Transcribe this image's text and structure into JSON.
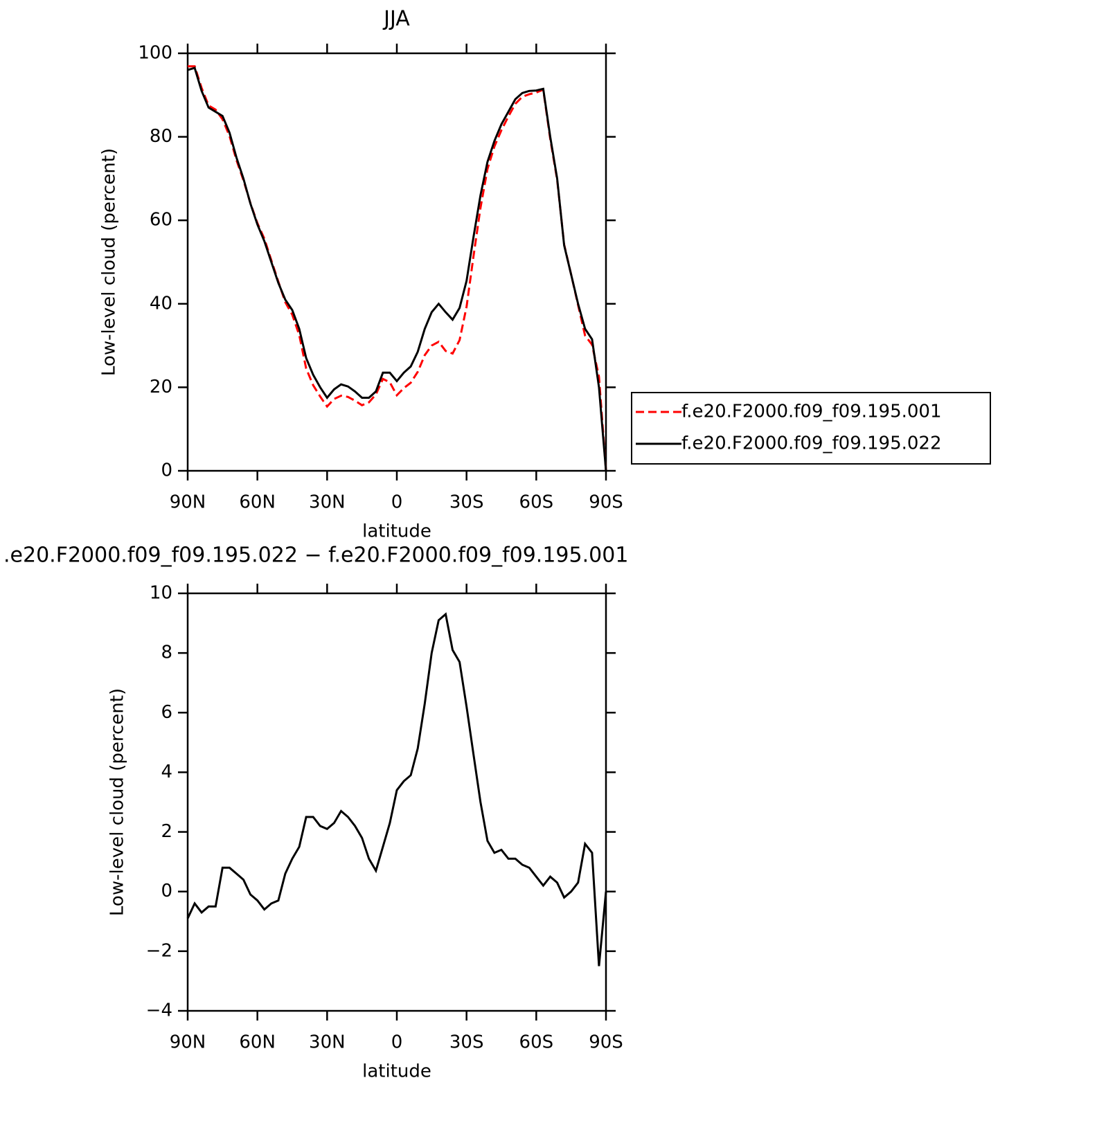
{
  "chart_data": [
    {
      "type": "line",
      "title": "JJA",
      "xlabel": "latitude",
      "ylabel": "Low-level cloud (percent)",
      "x": [
        90,
        87,
        84,
        81,
        78,
        75,
        72,
        69,
        66,
        63,
        60,
        57,
        54,
        51,
        48,
        45,
        42,
        39,
        36,
        33,
        30,
        27,
        24,
        21,
        18,
        15,
        12,
        9,
        6,
        3,
        0,
        -3,
        -6,
        -9,
        -12,
        -15,
        -18,
        -21,
        -24,
        -27,
        -30,
        -33,
        -36,
        -39,
        -42,
        -45,
        -48,
        -51,
        -54,
        -57,
        -60,
        -63,
        -66,
        -69,
        -72,
        -75,
        -78,
        -81,
        -84,
        -87,
        -90
      ],
      "xlim": [
        90,
        -90
      ],
      "xticks": [
        {
          "value": 90,
          "label": "90N"
        },
        {
          "value": 60,
          "label": "60N"
        },
        {
          "value": 30,
          "label": "30N"
        },
        0,
        {
          "value": -30,
          "label": "30S"
        },
        {
          "value": -60,
          "label": "60S"
        },
        {
          "value": -90,
          "label": "90S"
        }
      ],
      "ylim": [
        0,
        100
      ],
      "yticks": [
        0,
        20,
        40,
        60,
        80,
        100
      ],
      "legend": "right",
      "series": [
        {
          "name": "f.e20.F2000.f09_f09.195.001",
          "color": "#ff0000",
          "line_style": "dashed",
          "values": [
            96.9,
            96.9,
            91.7,
            87.5,
            86.5,
            84.2,
            80.2,
            74.4,
            69.6,
            64.1,
            59.3,
            55.6,
            50.4,
            45.3,
            40.4,
            37.4,
            32.5,
            24.5,
            20.5,
            17.8,
            15.4,
            17.2,
            18.0,
            17.7,
            16.8,
            15.7,
            16.4,
            18.3,
            22.0,
            21.2,
            18.1,
            19.8,
            21.1,
            23.7,
            27.7,
            30.0,
            30.9,
            28.7,
            28.1,
            31.3,
            39.3,
            51.4,
            63.0,
            72.3,
            77.7,
            81.6,
            84.9,
            87.9,
            89.6,
            90.2,
            90.6,
            91.3,
            79.5,
            69.7,
            54.2,
            47.0,
            39.7,
            32.4,
            30.2,
            22.5,
            0
          ]
        },
        {
          "name": "f.e20.F2000.f09_f09.195.022",
          "color": "#000000",
          "line_style": "solid",
          "values": [
            96,
            96.5,
            91,
            87,
            86,
            85,
            81,
            75,
            70,
            64,
            59,
            55,
            50,
            45,
            41,
            38.5,
            34,
            27,
            23,
            20,
            17.5,
            19.5,
            20.7,
            20.2,
            19,
            17.5,
            17.5,
            19,
            23.5,
            23.5,
            21.5,
            23.5,
            25,
            28.5,
            34,
            38,
            40,
            38,
            36.2,
            39,
            45.5,
            56,
            66,
            74,
            79,
            83,
            86,
            89,
            90.5,
            91,
            91.1,
            91.5,
            80,
            70,
            54,
            47,
            40,
            34,
            31.5,
            20,
            0
          ]
        }
      ]
    },
    {
      "type": "line",
      "title": ".e20.F2000.f09_f09.195.022 − f.e20.F2000.f09_f09.195.001",
      "xlabel": "latitude",
      "ylabel": "Low-level cloud (percent)",
      "x": [
        90,
        87,
        84,
        81,
        78,
        75,
        72,
        69,
        66,
        63,
        60,
        57,
        54,
        51,
        48,
        45,
        42,
        39,
        36,
        33,
        30,
        27,
        24,
        21,
        18,
        15,
        12,
        9,
        6,
        3,
        0,
        -3,
        -6,
        -9,
        -12,
        -15,
        -18,
        -21,
        -24,
        -27,
        -30,
        -33,
        -36,
        -39,
        -42,
        -45,
        -48,
        -51,
        -54,
        -57,
        -60,
        -63,
        -66,
        -69,
        -72,
        -75,
        -78,
        -81,
        -84,
        -87,
        -90
      ],
      "xlim": [
        90,
        -90
      ],
      "xticks": [
        {
          "value": 90,
          "label": "90N"
        },
        {
          "value": 60,
          "label": "60N"
        },
        {
          "value": 30,
          "label": "30N"
        },
        0,
        {
          "value": -30,
          "label": "30S"
        },
        {
          "value": -60,
          "label": "60S"
        },
        {
          "value": -90,
          "label": "90S"
        }
      ],
      "ylim": [
        -4,
        10
      ],
      "yticks": [
        {
          "value": -4,
          "label": "−4"
        },
        {
          "value": -2,
          "label": "−2"
        },
        0,
        2,
        4,
        6,
        8,
        10
      ],
      "series": [
        {
          "color": "#000000",
          "line_style": "solid",
          "values": [
            -0.9,
            -0.4,
            -0.7,
            -0.5,
            -0.5,
            0.8,
            0.8,
            0.6,
            0.4,
            -0.1,
            -0.3,
            -0.6,
            -0.4,
            -0.3,
            0.6,
            1.1,
            1.5,
            2.5,
            2.5,
            2.2,
            2.1,
            2.3,
            2.7,
            2.5,
            2.2,
            1.8,
            1.1,
            0.7,
            1.5,
            2.3,
            3.4,
            3.7,
            3.9,
            4.8,
            6.3,
            8.0,
            9.1,
            9.3,
            8.1,
            7.7,
            6.2,
            4.6,
            3.0,
            1.7,
            1.3,
            1.4,
            1.1,
            1.1,
            0.9,
            0.8,
            0.5,
            0.2,
            0.5,
            0.3,
            -0.2,
            0.0,
            0.3,
            1.6,
            1.3,
            -2.5,
            0.0
          ]
        }
      ]
    }
  ]
}
